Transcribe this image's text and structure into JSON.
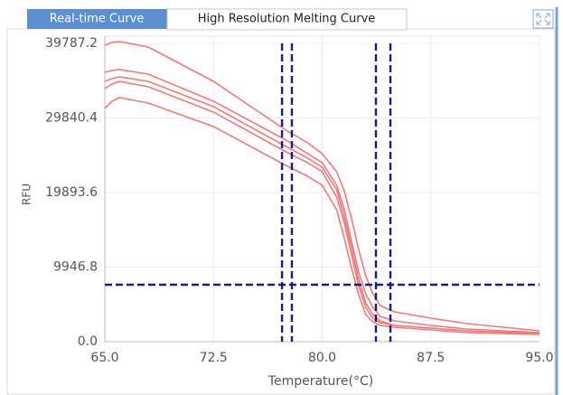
{
  "tabs": [
    "Real-time Curve",
    "High Resolution Melting Curve"
  ],
  "chart_data": {
    "type": "line",
    "ylabel": "RFU",
    "xlabel": "Temperature(°C)",
    "x": [
      65,
      65.5,
      66,
      68,
      72.5,
      77.5,
      79,
      80,
      81,
      81.5,
      82,
      82.5,
      83,
      83.5,
      84,
      85,
      87.5,
      90,
      95
    ],
    "series": [
      {
        "color": "#ef7b7b",
        "values": [
          39547,
          39909,
          40029,
          39306,
          34724,
          28213,
          26525,
          25079,
          22667,
          20256,
          16639,
          12419,
          8802,
          6390,
          4823,
          3979,
          3135,
          2411,
          1447
        ]
      },
      {
        "color": "#ef7b7b",
        "values": [
          35930,
          36171,
          36292,
          35689,
          32072,
          26887,
          25079,
          23873,
          20859,
          17845,
          13625,
          9405,
          6390,
          4582,
          3376,
          2773,
          2170,
          1688,
          1206
        ]
      },
      {
        "color": "#ef7b7b",
        "values": [
          34724,
          35086,
          35327,
          34724,
          31348,
          26043,
          24476,
          23270,
          20256,
          16880,
          12780,
          8440,
          5184,
          3617,
          2773,
          2170,
          1809,
          1447,
          1085
        ]
      },
      {
        "color": "#ef7b7b",
        "values": [
          33760,
          34362,
          34724,
          34001,
          30625,
          25320,
          23873,
          22667,
          19291,
          16036,
          11816,
          7596,
          4582,
          3135,
          2532,
          2170,
          1809,
          1447,
          1085
        ]
      },
      {
        "color": "#ef7b7b",
        "values": [
          31107,
          32072,
          32554,
          31830,
          28696,
          23511,
          22064,
          20859,
          17604,
          13987,
          10007,
          6390,
          3617,
          2653,
          2170,
          1929,
          1567,
          1206,
          965
        ]
      }
    ],
    "cursors": {
      "color": "#1c1c7c",
      "x": [
        77.23,
        77.91,
        83.71,
        84.71
      ],
      "y": 7596
    },
    "xlim": [
      65,
      95
    ],
    "ylim": [
      0,
      40750
    ],
    "xticks": [
      {
        "value": 65,
        "label": "65.0"
      },
      72.5,
      {
        "value": 80,
        "label": "80.0"
      },
      87.5,
      {
        "value": 95,
        "label": "95.0"
      }
    ],
    "yticks": [
      {
        "value": 0,
        "label": "0.0"
      },
      9946.8,
      19893.6,
      29840.4,
      39787.2
    ],
    "grid": true
  }
}
